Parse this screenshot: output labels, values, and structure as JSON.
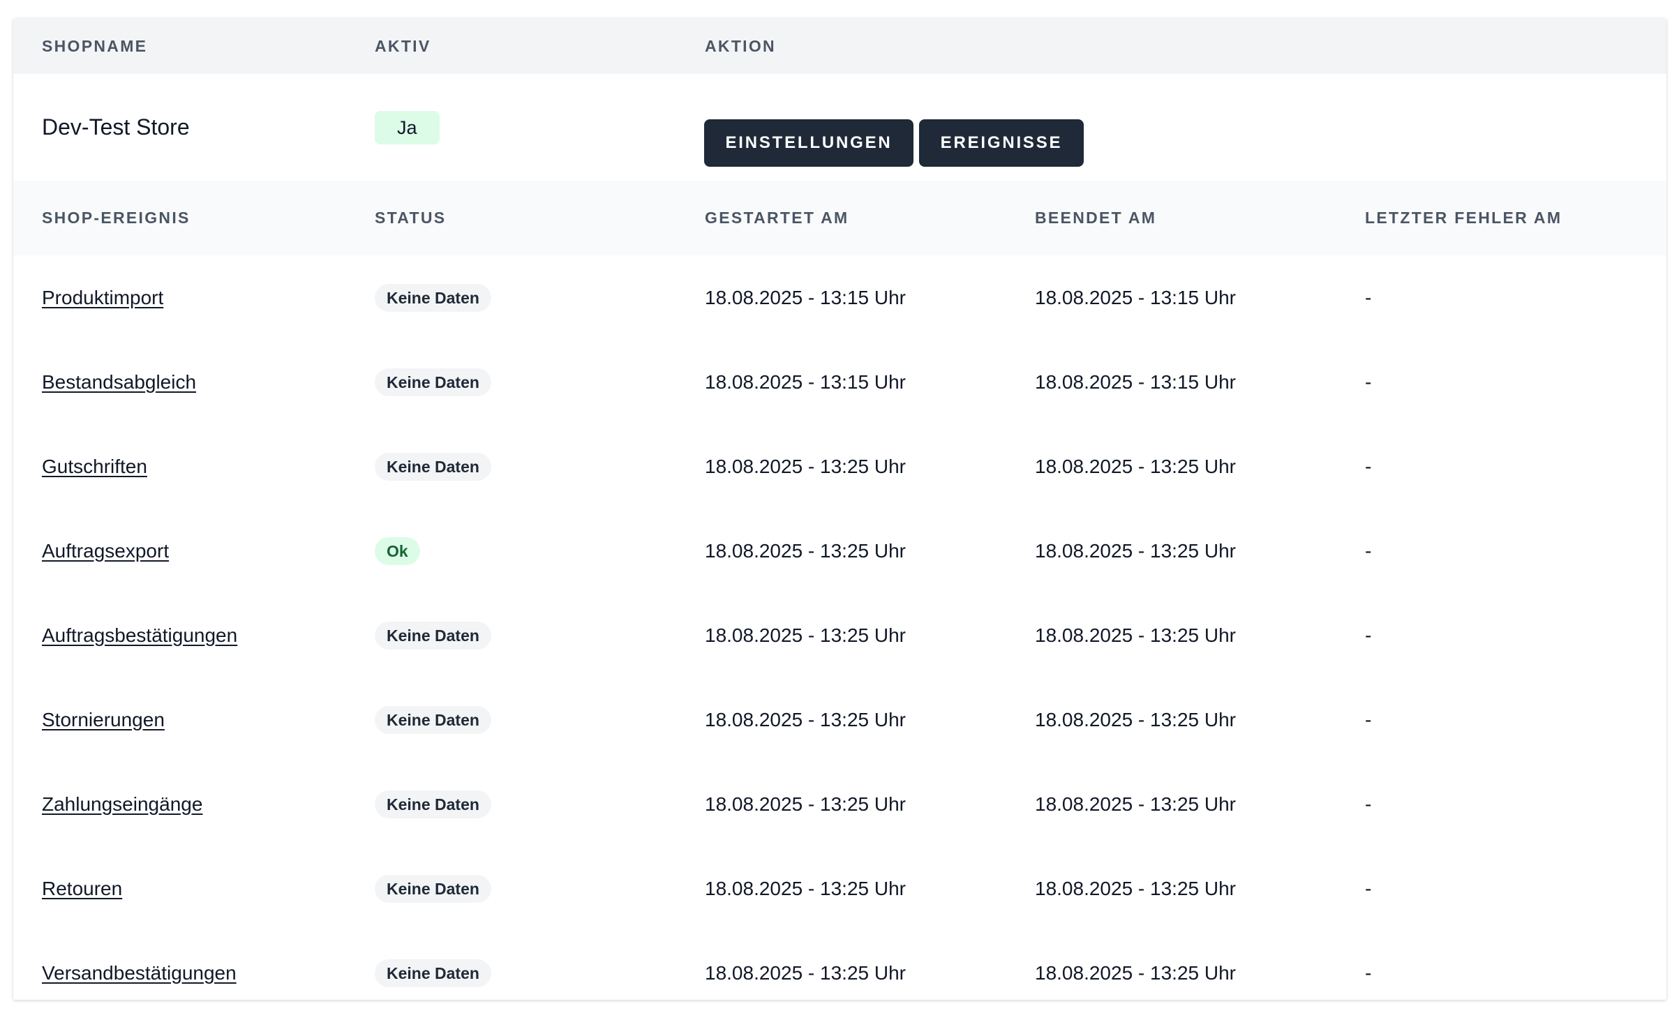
{
  "shop_table": {
    "headers": {
      "shopname": "SHOPNAME",
      "aktiv": "AKTIV",
      "aktion": "AKTION"
    },
    "shop": {
      "name": "Dev-Test Store",
      "active": "Ja",
      "buttons": {
        "settings": "EINSTELLUNGEN",
        "events": "EREIGNISSE"
      }
    }
  },
  "events_table": {
    "headers": {
      "event": "SHOP-EREIGNIS",
      "status": "STATUS",
      "started": "GESTARTET AM",
      "ended": "BEENDET AM",
      "last_error": "LETZTER FEHLER AM"
    },
    "rows": [
      {
        "event": "Produktimport",
        "status": "Keine Daten",
        "started": "18.08.2025 - 13:15 Uhr",
        "ended": "18.08.2025 - 13:15 Uhr",
        "last_error": "-"
      },
      {
        "event": "Bestandsabgleich",
        "status": "Keine Daten",
        "started": "18.08.2025 - 13:15 Uhr",
        "ended": "18.08.2025 - 13:15 Uhr",
        "last_error": "-"
      },
      {
        "event": "Gutschriften",
        "status": "Keine Daten",
        "started": "18.08.2025 - 13:25 Uhr",
        "ended": "18.08.2025 - 13:25 Uhr",
        "last_error": "-"
      },
      {
        "event": "Auftragsexport",
        "status": "Ok",
        "started": "18.08.2025 - 13:25 Uhr",
        "ended": "18.08.2025 - 13:25 Uhr",
        "last_error": "-"
      },
      {
        "event": "Auftragsbestätigungen",
        "status": "Keine Daten",
        "started": "18.08.2025 - 13:25 Uhr",
        "ended": "18.08.2025 - 13:25 Uhr",
        "last_error": "-"
      },
      {
        "event": "Stornierungen",
        "status": "Keine Daten",
        "started": "18.08.2025 - 13:25 Uhr",
        "ended": "18.08.2025 - 13:25 Uhr",
        "last_error": "-"
      },
      {
        "event": "Zahlungseingänge",
        "status": "Keine Daten",
        "started": "18.08.2025 - 13:25 Uhr",
        "ended": "18.08.2025 - 13:25 Uhr",
        "last_error": "-"
      },
      {
        "event": "Retouren",
        "status": "Keine Daten",
        "started": "18.08.2025 - 13:25 Uhr",
        "ended": "18.08.2025 - 13:25 Uhr",
        "last_error": "-"
      },
      {
        "event": "Versandbestätigungen",
        "status": "Keine Daten",
        "started": "18.08.2025 - 13:25 Uhr",
        "ended": "18.08.2025 - 13:25 Uhr",
        "last_error": "-"
      }
    ]
  },
  "colors": {
    "button_bg": "#1f2937",
    "badge_green_bg": "#dcfce7",
    "badge_green_text": "#166534",
    "badge_gray_bg": "#f3f4f6",
    "header_bg": "#f3f4f6"
  }
}
